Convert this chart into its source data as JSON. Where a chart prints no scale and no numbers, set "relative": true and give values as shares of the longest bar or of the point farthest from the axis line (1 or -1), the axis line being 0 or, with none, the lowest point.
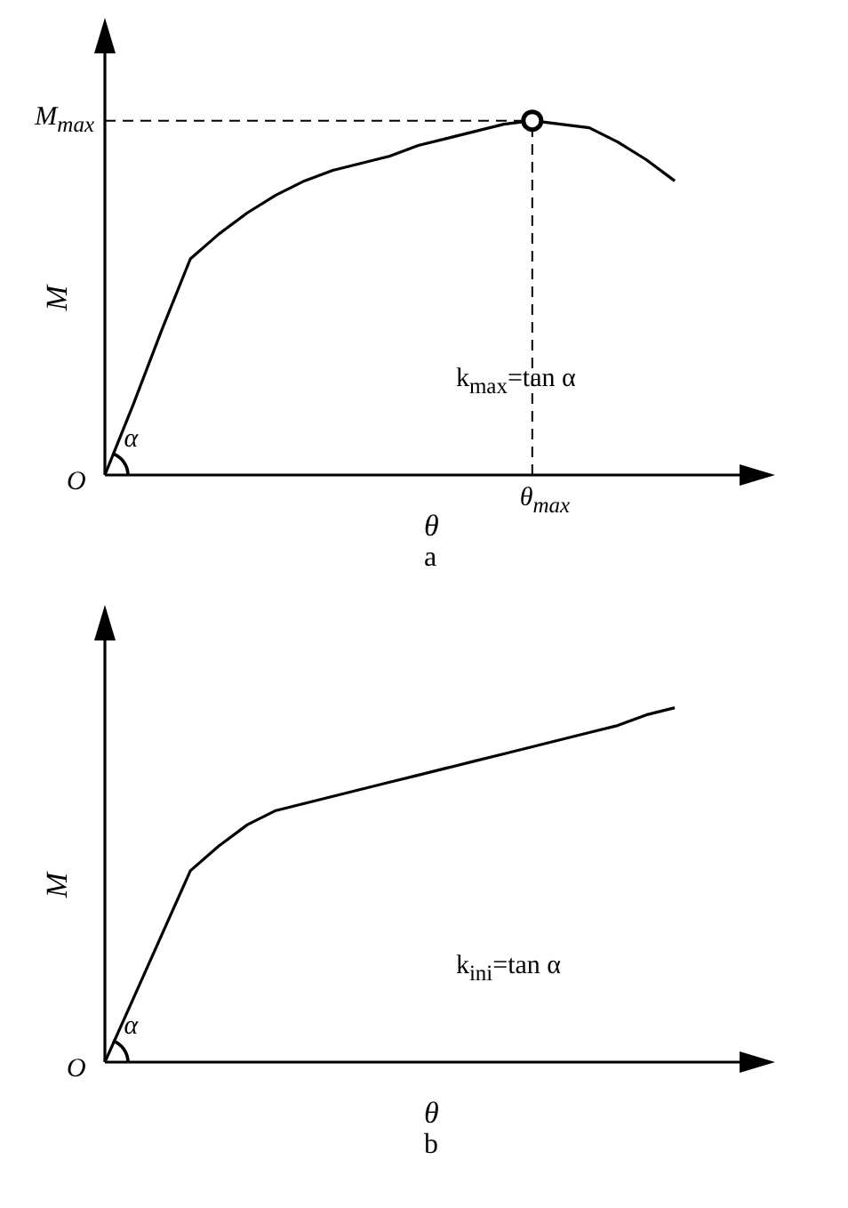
{
  "chart_data": [
    {
      "type": "line",
      "title": "a",
      "xlabel": "θ",
      "ylabel": "M",
      "relative": true,
      "categories": [
        null,
        null,
        null,
        null,
        null,
        null,
        null,
        null,
        null,
        null,
        null,
        null,
        null,
        null,
        null,
        null,
        null,
        null,
        null,
        null,
        null
      ],
      "series": [
        {
          "color": "#000000",
          "values": [
            0,
            0.2,
            0.41,
            0.61,
            0.68,
            0.74,
            0.79,
            0.83,
            0.86,
            0.88,
            0.9,
            0.93,
            0.95,
            0.97,
            0.99,
            1,
            0.99,
            0.98,
            0.94,
            0.89,
            0.83
          ]
        }
      ],
      "ref_lines": [
        {
          "axis": "y",
          "value": 1,
          "label": "M$_{max}$",
          "line_style": "dashed",
          "color": "#000000"
        },
        {
          "axis": "x",
          "label": "θ$_{max}$",
          "line_style": "dashed",
          "color": "#000000"
        }
      ],
      "annotations": [
        "k$_{max}$=tan α",
        "α",
        "O"
      ]
    },
    {
      "type": "line",
      "title": "b",
      "xlabel": "θ",
      "ylabel": "M",
      "relative": true,
      "categories": [
        null,
        null,
        null,
        null,
        null,
        null,
        null,
        null,
        null,
        null,
        null,
        null,
        null,
        null,
        null,
        null,
        null,
        null,
        null,
        null,
        null
      ],
      "series": [
        {
          "color": "#000000",
          "values": [
            0,
            0.18,
            0.36,
            0.54,
            0.61,
            0.67,
            0.71,
            0.73,
            0.75,
            0.77,
            0.79,
            0.81,
            0.83,
            0.85,
            0.87,
            0.89,
            0.91,
            0.93,
            0.95,
            0.98,
            1
          ]
        }
      ],
      "annotations": [
        "k$_{ini}$=tan α",
        "α",
        "O"
      ]
    }
  ]
}
